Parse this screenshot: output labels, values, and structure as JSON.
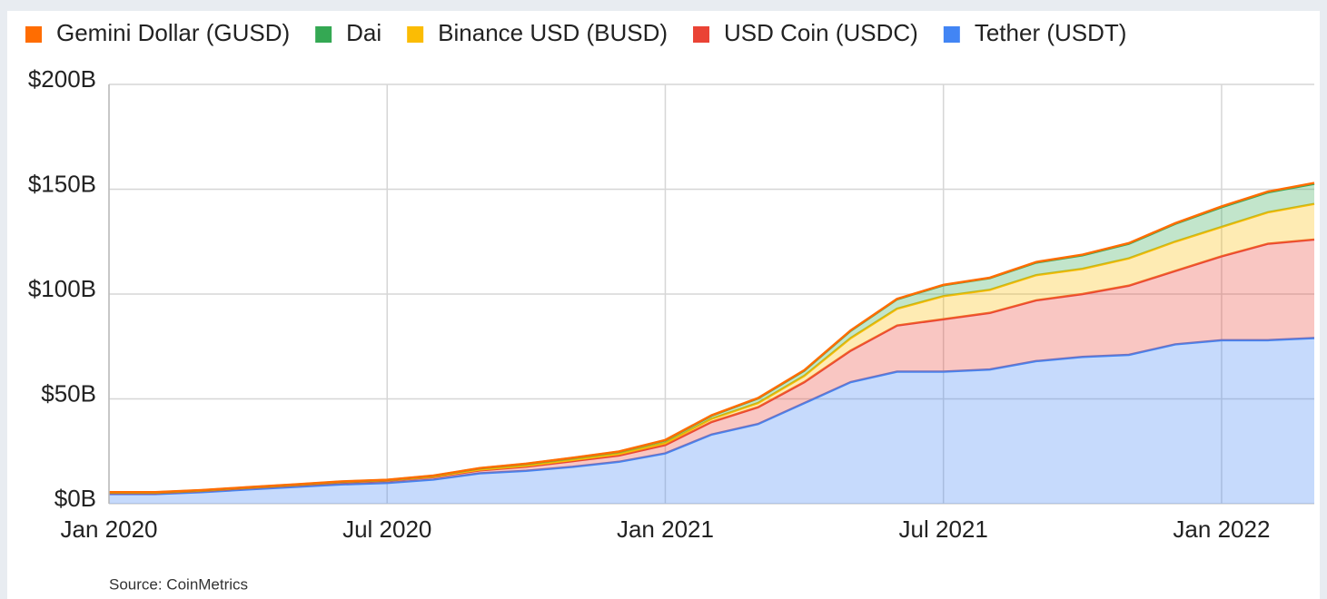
{
  "chart_data": {
    "type": "stacked_area",
    "source": "Source: CoinMetrics",
    "x": [
      "2020-01",
      "2020-02",
      "2020-03",
      "2020-04",
      "2020-05",
      "2020-06",
      "2020-07",
      "2020-08",
      "2020-09",
      "2020-10",
      "2020-11",
      "2020-12",
      "2021-01",
      "2021-02",
      "2021-03",
      "2021-04",
      "2021-05",
      "2021-06",
      "2021-07",
      "2021-08",
      "2021-09",
      "2021-10",
      "2021-11",
      "2021-12",
      "2022-01",
      "2022-02",
      "2022-03"
    ],
    "xlim": [
      "2020-01",
      "2022-03"
    ],
    "xticks": [
      {
        "value": "2020-01",
        "label": "Jan 2020"
      },
      {
        "value": "2020-07",
        "label": "Jul 2020"
      },
      {
        "value": "2021-01",
        "label": "Jan 2021"
      },
      {
        "value": "2021-07",
        "label": "Jul 2021"
      },
      {
        "value": "2022-01",
        "label": "Jan 2022"
      }
    ],
    "ylim": [
      0,
      200
    ],
    "yticks": [
      {
        "value": 0,
        "label": "$0B"
      },
      {
        "value": 50,
        "label": "$50B"
      },
      {
        "value": 100,
        "label": "$100B"
      },
      {
        "value": 150,
        "label": "$150B"
      },
      {
        "value": 200,
        "label": "$200B"
      }
    ],
    "grid": true,
    "legend": "top",
    "series": [
      {
        "name": "Gemini Dollar (GUSD)",
        "color": "#ff6d01",
        "values": [
          0.1,
          0.1,
          0.1,
          0.1,
          0.1,
          0.1,
          0.1,
          0.1,
          0.1,
          0.1,
          0.1,
          0.1,
          0.2,
          0.2,
          0.2,
          0.2,
          0.2,
          0.2,
          0.2,
          0.2,
          0.3,
          0.3,
          0.3,
          0.3,
          0.4,
          0.4,
          0.4
        ]
      },
      {
        "name": "Dai",
        "color": "#34a853",
        "values": [
          0.1,
          0.1,
          0.1,
          0.1,
          0.1,
          0.1,
          0.1,
          0.3,
          0.6,
          0.8,
          0.9,
          1.0,
          1.2,
          1.5,
          2.2,
          2.5,
          3.5,
          4.5,
          5.2,
          5.6,
          6.0,
          6.5,
          7,
          8.5,
          9.4,
          9.5,
          9.6
        ]
      },
      {
        "name": "Binance USD (BUSD)",
        "color": "#fbbc04",
        "values": [
          0.2,
          0.2,
          0.2,
          0.2,
          0.2,
          0.2,
          0.2,
          0.3,
          0.4,
          0.5,
          0.6,
          0.8,
          1.0,
          1.5,
          2.0,
          3.0,
          6,
          8,
          11,
          11,
          12,
          12,
          13,
          14,
          14,
          15,
          17
        ]
      },
      {
        "name": "USD Coin (USDC)",
        "color": "#ea4335",
        "values": [
          0.5,
          0.5,
          0.6,
          0.7,
          0.8,
          1.0,
          1.1,
          1.2,
          1.4,
          2.0,
          2.7,
          3.0,
          4.0,
          6,
          8,
          10,
          15,
          22,
          25,
          27,
          29,
          30,
          33,
          35,
          40,
          46,
          47
        ]
      },
      {
        "name": "Tether (USDT)",
        "color": "#4285f4",
        "values": [
          4.6,
          4.6,
          5.5,
          6.8,
          8.0,
          9.2,
          9.9,
          11.5,
          14.5,
          15.7,
          17.6,
          20,
          24,
          33,
          38,
          48,
          58,
          63,
          63,
          64,
          68,
          70,
          71,
          76,
          78,
          78,
          79
        ]
      }
    ]
  }
}
